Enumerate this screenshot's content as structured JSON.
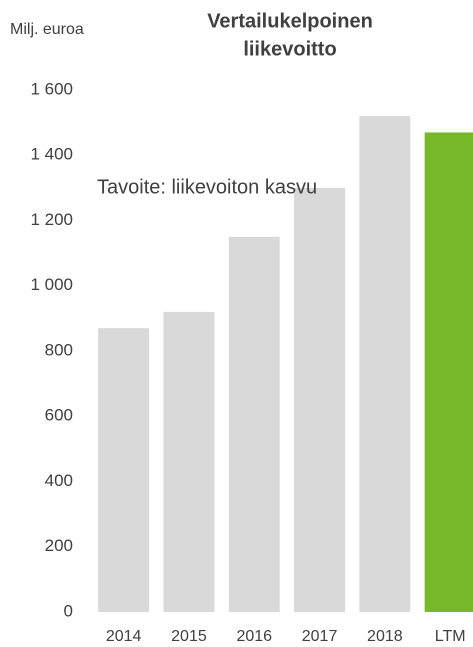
{
  "chart_data": {
    "type": "bar",
    "title": [
      "Vertailukelpoinen",
      "liikevoitto"
    ],
    "y_label": "Milj. euroa",
    "annotation": "Tavoite: liikevoiton kasvu",
    "categories": [
      "2014",
      "2015",
      "2016",
      "2017",
      "2018",
      "LTM"
    ],
    "values": [
      870,
      920,
      1150,
      1300,
      1520,
      1470
    ],
    "colors": [
      "#d9d9d9",
      "#d9d9d9",
      "#d9d9d9",
      "#d9d9d9",
      "#d9d9d9",
      "#77b82a"
    ],
    "ylim": [
      0,
      1600
    ],
    "yticks": [
      0,
      200,
      400,
      600,
      800,
      {
        "value": 1000,
        "label": "1 000"
      },
      {
        "value": 1200,
        "label": "1 200"
      },
      {
        "value": 1400,
        "label": "1 400"
      },
      {
        "value": 1600,
        "label": "1 600"
      }
    ],
    "grid": false
  }
}
